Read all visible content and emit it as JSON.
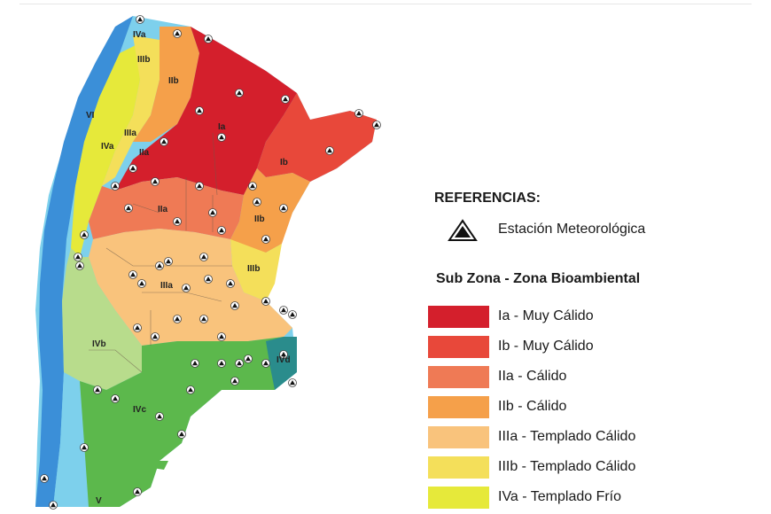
{
  "legend": {
    "references_title": "REFERENCIAS:",
    "station_icon": "triangle-station-icon",
    "station_label": "Estación Meteorológica",
    "zones_title": "Sub Zona - Zona Bioambiental",
    "items": [
      {
        "label": "Ia - Muy Cálido",
        "color": "#d41f2c"
      },
      {
        "label": "Ib - Muy Cálido",
        "color": "#e8483a"
      },
      {
        "label": "IIa - Cálido",
        "color": "#ef7a55"
      },
      {
        "label": "IIb - Cálido",
        "color": "#f5a04a"
      },
      {
        "label": "IIIa - Templado Cálido",
        "color": "#f9c37c"
      },
      {
        "label": "IIIb - Templado Cálido",
        "color": "#f4df5a"
      },
      {
        "label": "IVa - Templado Frío",
        "color": "#e6e93a"
      }
    ]
  },
  "map": {
    "zone_labels": [
      "IVa",
      "IIIb",
      "IIb",
      "VI",
      "IIIa",
      "Ia",
      "IVa",
      "IIa",
      "Ib",
      "IIa",
      "IIb",
      "IIIb",
      "IIIa",
      "IVb",
      "IVd",
      "IVc",
      "V"
    ],
    "extra_colors": {
      "IVb": "#b8dc8c",
      "IVc": "#5cb84c",
      "IVd": "#2a8c8c",
      "V": "#7dd0ec",
      "VI": "#3b8fd8"
    }
  }
}
